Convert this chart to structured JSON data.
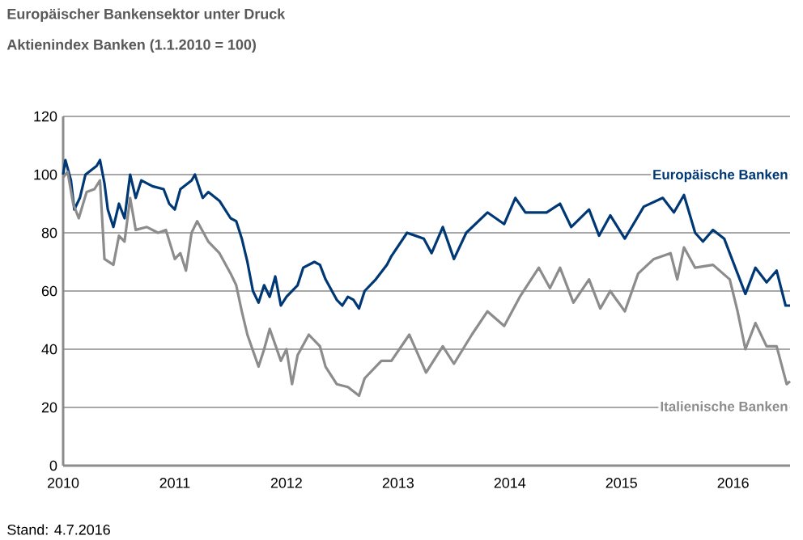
{
  "chart_data": {
    "type": "line",
    "title": "Europäischer Bankensektor unter Druck",
    "subtitle": "Aktienindex Banken (1.1.2010 = 100)",
    "annotations": [
      "Stand: 4.7.2016"
    ],
    "xlim": [
      2010,
      2016.51
    ],
    "xticks": [
      2010,
      2011,
      2012,
      2013,
      2014,
      2015,
      2016
    ],
    "ylim": [
      0,
      120
    ],
    "yticks": [
      0,
      20,
      40,
      60,
      80,
      100,
      120
    ],
    "grid": "y",
    "series": [
      {
        "name": "Europäische Banken",
        "color": "#003876",
        "x": [
          2010.0,
          2010.02,
          2010.07,
          2010.1,
          2010.15,
          2010.2,
          2010.3,
          2010.33,
          2010.37,
          2010.4,
          2010.45,
          2010.5,
          2010.55,
          2010.6,
          2010.65,
          2010.7,
          2010.8,
          2010.9,
          2010.95,
          2011.0,
          2011.05,
          2011.15,
          2011.18,
          2011.25,
          2011.3,
          2011.4,
          2011.5,
          2011.55,
          2011.6,
          2011.65,
          2011.7,
          2011.75,
          2011.8,
          2011.85,
          2011.9,
          2011.95,
          2012.0,
          2012.1,
          2012.15,
          2012.25,
          2012.3,
          2012.35,
          2012.45,
          2012.5,
          2012.55,
          2012.6,
          2012.65,
          2012.7,
          2012.8,
          2012.9,
          2012.94,
          2013.08,
          2013.23,
          2013.3,
          2013.4,
          2013.5,
          2013.61,
          2013.8,
          2013.95,
          2014.05,
          2014.14,
          2014.33,
          2014.45,
          2014.55,
          2014.71,
          2014.8,
          2014.9,
          2015.03,
          2015.2,
          2015.37,
          2015.47,
          2015.56,
          2015.66,
          2015.73,
          2015.82,
          2015.92,
          2016.01,
          2016.11,
          2016.2,
          2016.3,
          2016.39,
          2016.47,
          2016.51
        ],
        "values": [
          100,
          105,
          98,
          88,
          92,
          100,
          103,
          105,
          97,
          88,
          82,
          90,
          85,
          100,
          92,
          98,
          96,
          95,
          90,
          88,
          95,
          98,
          100,
          92,
          94,
          91,
          85,
          84,
          78,
          70,
          60,
          56,
          62,
          58,
          65,
          55,
          58,
          62,
          68,
          70,
          69,
          64,
          57,
          55,
          58,
          57,
          54,
          60,
          64,
          69,
          72,
          80,
          78,
          73,
          82,
          71,
          80,
          87,
          83,
          92,
          87,
          87,
          90,
          82,
          88,
          79,
          86,
          78,
          89,
          92,
          87,
          93,
          80,
          77,
          81,
          78,
          69,
          59,
          68,
          63,
          67,
          55,
          55
        ]
      },
      {
        "name": "Italienische Banken",
        "color": "#8c8c8c",
        "x": [
          2010.0,
          2010.04,
          2010.09,
          2010.14,
          2010.21,
          2010.28,
          2010.33,
          2010.37,
          2010.45,
          2010.5,
          2010.55,
          2010.6,
          2010.65,
          2010.75,
          2010.85,
          2010.92,
          2011.0,
          2011.05,
          2011.1,
          2011.15,
          2011.2,
          2011.3,
          2011.4,
          2011.5,
          2011.55,
          2011.6,
          2011.65,
          2011.75,
          2011.8,
          2011.85,
          2011.95,
          2012.0,
          2012.05,
          2012.1,
          2012.2,
          2012.3,
          2012.35,
          2012.45,
          2012.55,
          2012.65,
          2012.7,
          2012.85,
          2012.94,
          2013.1,
          2013.25,
          2013.4,
          2013.5,
          2013.66,
          2013.8,
          2013.95,
          2014.09,
          2014.26,
          2014.36,
          2014.45,
          2014.57,
          2014.71,
          2014.81,
          2014.9,
          2015.03,
          2015.15,
          2015.29,
          2015.44,
          2015.5,
          2015.56,
          2015.66,
          2015.82,
          2015.97,
          2016.04,
          2016.11,
          2016.2,
          2016.3,
          2016.39,
          2016.48,
          2016.51
        ],
        "values": [
          99,
          101,
          90,
          85,
          94,
          95,
          98,
          71,
          69,
          79,
          77,
          92,
          81,
          82,
          80,
          81,
          71,
          73,
          67,
          80,
          84,
          77,
          73,
          66,
          62,
          53,
          45,
          34,
          40,
          47,
          36,
          40,
          28,
          38,
          45,
          41,
          34,
          28,
          27,
          24,
          30,
          36,
          36,
          45,
          32,
          41,
          35,
          45,
          53,
          48,
          58,
          68,
          61,
          68,
          56,
          64,
          54,
          60,
          53,
          66,
          71,
          73,
          64,
          75,
          68,
          69,
          64,
          53,
          40,
          49,
          41,
          41,
          28,
          29
        ]
      }
    ]
  }
}
